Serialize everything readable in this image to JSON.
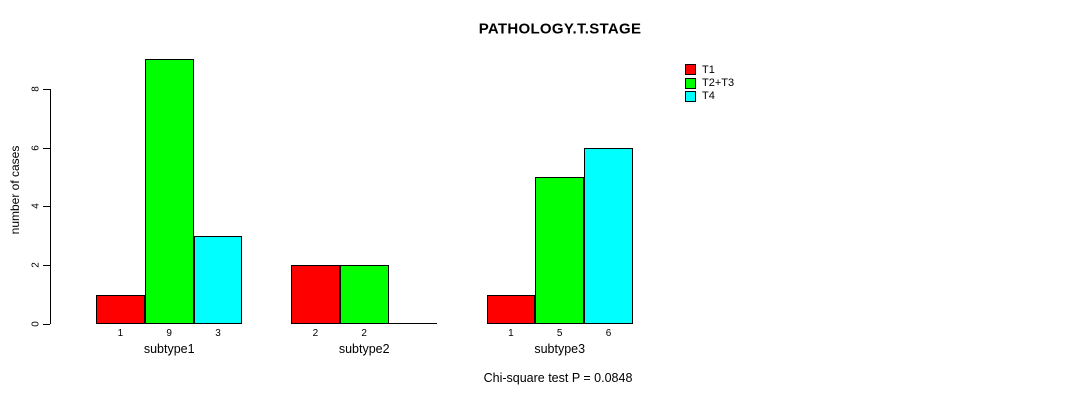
{
  "title": "PATHOLOGY.T.STAGE",
  "chart_data": {
    "type": "bar",
    "title": "PATHOLOGY.T.STAGE",
    "ylabel": "number of cases",
    "xlabel": "",
    "categories": [
      "subtype1",
      "subtype2",
      "subtype3"
    ],
    "series": [
      {
        "name": "T1",
        "color": "#ff0000",
        "values": [
          1,
          2,
          1
        ]
      },
      {
        "name": "T2+T3",
        "color": "#00ff00",
        "values": [
          9,
          2,
          5
        ]
      },
      {
        "name": "T4",
        "color": "#00ffff",
        "values": [
          3,
          0,
          6
        ]
      }
    ],
    "yticks": [
      0,
      2,
      4,
      6,
      8
    ],
    "ylim": [
      0,
      9
    ],
    "grid": false,
    "grouped": true,
    "legend_position": "top-right",
    "bar_value_labels": true,
    "zero_bars_unlabeled": true,
    "annotation": "Chi-square test P = 0.0848"
  },
  "colors": {
    "background": "#ffffff",
    "axis": "#000000",
    "text": "#000000",
    "t1": "#ff0000",
    "t2_t3": "#00ff00",
    "t4": "#00ffff"
  }
}
